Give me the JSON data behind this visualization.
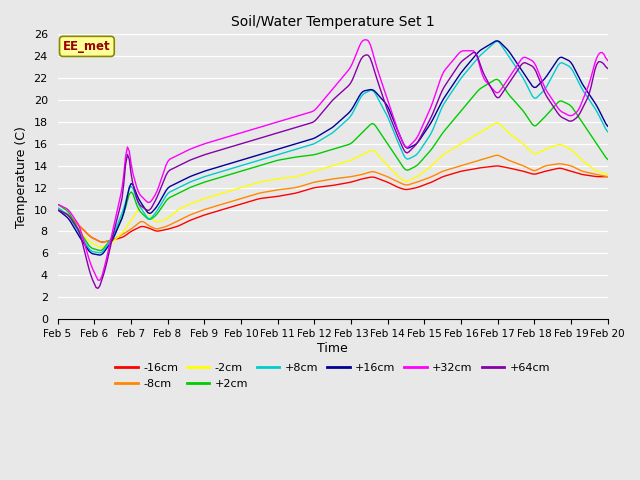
{
  "title": "Soil/Water Temperature Set 1",
  "xlabel": "Time",
  "ylabel": "Temperature (C)",
  "xlim": [
    0,
    15
  ],
  "ylim": [
    0,
    26
  ],
  "yticks": [
    0,
    2,
    4,
    6,
    8,
    10,
    12,
    14,
    16,
    18,
    20,
    22,
    24,
    26
  ],
  "xtick_labels": [
    "Feb 5",
    "Feb 6",
    "Feb 7",
    "Feb 8",
    "Feb 9",
    "Feb 10",
    "Feb 11",
    "Feb 12",
    "Feb 13",
    "Feb 14",
    "Feb 15",
    "Feb 16",
    "Feb 17",
    "Feb 18",
    "Feb 19",
    "Feb 20"
  ],
  "annotation_text": "EE_met",
  "annotation_box_color": "#ffff99",
  "annotation_text_color": "#990000",
  "background_color": "#e8e8e8",
  "series_colors": {
    "-16cm": "#ff0000",
    "-8cm": "#ff8800",
    "-2cm": "#ffff00",
    "+2cm": "#00cc00",
    "+8cm": "#00cccc",
    "+16cm": "#000099",
    "+32cm": "#ff00ff",
    "+64cm": "#8800aa"
  },
  "series_order": [
    "-16cm",
    "-8cm",
    "-2cm",
    "+2cm",
    "+8cm",
    "+16cm",
    "+32cm",
    "+64cm"
  ],
  "n_points": 300
}
